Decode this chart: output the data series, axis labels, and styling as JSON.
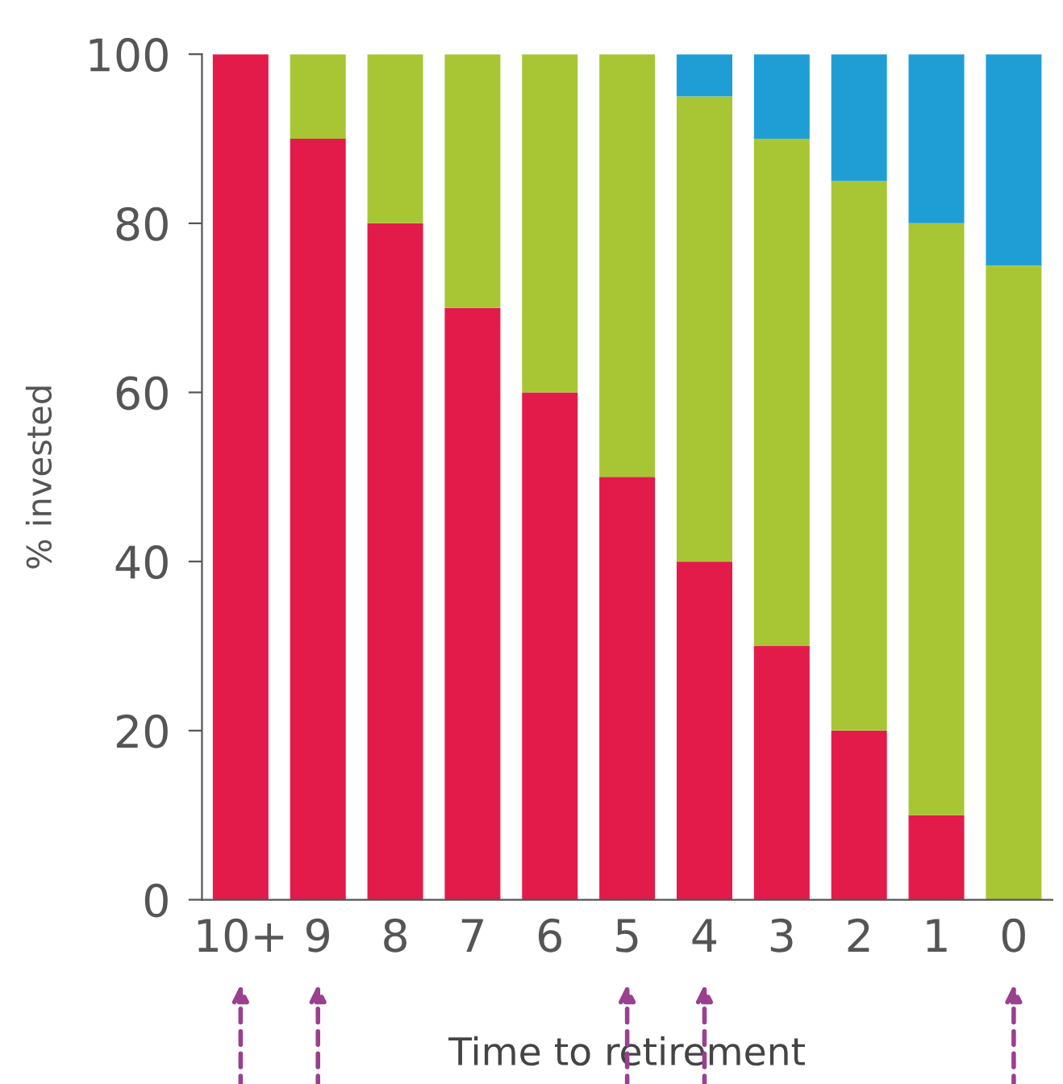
{
  "chart_data": {
    "type": "bar",
    "stacked": true,
    "xlabel": "Time to retirement",
    "ylabel": "% invested",
    "categories": [
      "10+",
      "9",
      "8",
      "7",
      "6",
      "5",
      "4",
      "3",
      "2",
      "1",
      "0"
    ],
    "series": [
      {
        "color": "#e31b4b",
        "values": [
          100,
          90,
          80,
          70,
          60,
          50,
          40,
          30,
          20,
          10,
          0
        ]
      },
      {
        "color": "#a8c634",
        "values": [
          0,
          10,
          20,
          30,
          40,
          50,
          55,
          60,
          65,
          70,
          75
        ]
      },
      {
        "color": "#1f9ed6",
        "values": [
          0,
          0,
          0,
          0,
          0,
          0,
          5,
          10,
          15,
          20,
          25
        ]
      }
    ],
    "ylim": [
      0,
      100
    ],
    "yticks": [
      0,
      20,
      40,
      60,
      80,
      100
    ],
    "grid": false,
    "legend": false
  }
}
